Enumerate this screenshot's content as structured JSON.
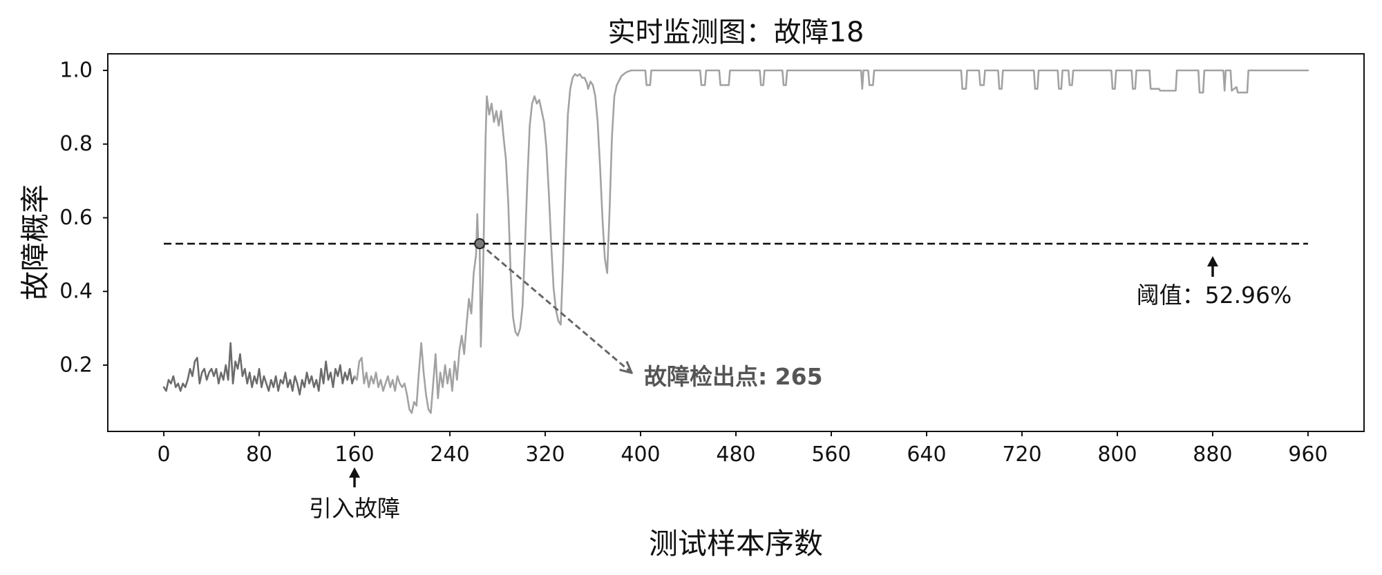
{
  "chart_data": {
    "type": "line",
    "title": "实时监测图：故障18",
    "xlabel": "测试样本序数",
    "ylabel": "故障概率",
    "xticks": [
      0,
      80,
      160,
      240,
      320,
      400,
      480,
      560,
      640,
      720,
      800,
      880,
      960
    ],
    "yticks": [
      0.2,
      0.4,
      0.6,
      0.8,
      1.0
    ],
    "ytick_labels": [
      "0.2",
      "0.4",
      "0.6",
      "0.8",
      "1.0"
    ],
    "xlim": [
      -47,
      1007
    ],
    "ylim": [
      0.02,
      1.045
    ],
    "grid": false,
    "legend": "none",
    "series": [
      {
        "color": "#6b6b6b",
        "points": [
          [
            0,
            0.14
          ],
          [
            2,
            0.13
          ],
          [
            4,
            0.16
          ],
          [
            6,
            0.15
          ],
          [
            8,
            0.17
          ],
          [
            10,
            0.14
          ],
          [
            12,
            0.15
          ],
          [
            14,
            0.13
          ],
          [
            16,
            0.15
          ],
          [
            18,
            0.14
          ],
          [
            20,
            0.16
          ],
          [
            22,
            0.19
          ],
          [
            24,
            0.17
          ],
          [
            26,
            0.21
          ],
          [
            28,
            0.22
          ],
          [
            30,
            0.15
          ],
          [
            32,
            0.18
          ],
          [
            34,
            0.19
          ],
          [
            36,
            0.16
          ],
          [
            38,
            0.18
          ],
          [
            40,
            0.19
          ],
          [
            42,
            0.17
          ],
          [
            44,
            0.19
          ],
          [
            46,
            0.15
          ],
          [
            48,
            0.18
          ],
          [
            50,
            0.16
          ],
          [
            52,
            0.2
          ],
          [
            54,
            0.16
          ],
          [
            56,
            0.26
          ],
          [
            58,
            0.15
          ],
          [
            60,
            0.21
          ],
          [
            62,
            0.19
          ],
          [
            64,
            0.23
          ],
          [
            66,
            0.17
          ],
          [
            68,
            0.19
          ],
          [
            70,
            0.15
          ],
          [
            72,
            0.18
          ],
          [
            74,
            0.14
          ],
          [
            76,
            0.17
          ],
          [
            78,
            0.15
          ],
          [
            80,
            0.19
          ],
          [
            82,
            0.14
          ],
          [
            84,
            0.17
          ],
          [
            86,
            0.15
          ],
          [
            88,
            0.13
          ],
          [
            90,
            0.16
          ],
          [
            92,
            0.14
          ],
          [
            94,
            0.17
          ],
          [
            96,
            0.13
          ],
          [
            98,
            0.16
          ],
          [
            100,
            0.15
          ],
          [
            102,
            0.18
          ],
          [
            104,
            0.14
          ],
          [
            106,
            0.16
          ],
          [
            108,
            0.13
          ],
          [
            110,
            0.17
          ],
          [
            112,
            0.15
          ],
          [
            114,
            0.12
          ],
          [
            116,
            0.16
          ],
          [
            118,
            0.14
          ],
          [
            120,
            0.18
          ],
          [
            122,
            0.15
          ],
          [
            124,
            0.17
          ],
          [
            126,
            0.14
          ],
          [
            128,
            0.16
          ],
          [
            130,
            0.13
          ],
          [
            132,
            0.19
          ],
          [
            134,
            0.15
          ],
          [
            136,
            0.21
          ],
          [
            138,
            0.16
          ],
          [
            140,
            0.18
          ],
          [
            142,
            0.14
          ],
          [
            144,
            0.19
          ],
          [
            146,
            0.17
          ],
          [
            148,
            0.2
          ],
          [
            150,
            0.15
          ],
          [
            152,
            0.18
          ],
          [
            154,
            0.16
          ],
          [
            156,
            0.19
          ],
          [
            158,
            0.15
          ],
          [
            160,
            0.17
          ]
        ]
      },
      {
        "color": "#a2a2a2",
        "points": [
          [
            160,
            0.17
          ],
          [
            162,
            0.16
          ],
          [
            164,
            0.21
          ],
          [
            166,
            0.22
          ],
          [
            168,
            0.15
          ],
          [
            170,
            0.18
          ],
          [
            172,
            0.14
          ],
          [
            174,
            0.17
          ],
          [
            176,
            0.15
          ],
          [
            178,
            0.18
          ],
          [
            180,
            0.14
          ],
          [
            182,
            0.16
          ],
          [
            184,
            0.13
          ],
          [
            186,
            0.15
          ],
          [
            188,
            0.17
          ],
          [
            190,
            0.14
          ],
          [
            192,
            0.16
          ],
          [
            194,
            0.13
          ],
          [
            196,
            0.17
          ],
          [
            198,
            0.15
          ],
          [
            200,
            0.14
          ],
          [
            202,
            0.15
          ],
          [
            204,
            0.12
          ],
          [
            206,
            0.08
          ],
          [
            208,
            0.07
          ],
          [
            210,
            0.1
          ],
          [
            212,
            0.09
          ],
          [
            214,
            0.18
          ],
          [
            216,
            0.26
          ],
          [
            218,
            0.18
          ],
          [
            220,
            0.12
          ],
          [
            222,
            0.08
          ],
          [
            224,
            0.07
          ],
          [
            226,
            0.15
          ],
          [
            228,
            0.23
          ],
          [
            230,
            0.11
          ],
          [
            232,
            0.18
          ],
          [
            234,
            0.14
          ],
          [
            236,
            0.2
          ],
          [
            238,
            0.15
          ],
          [
            240,
            0.19
          ],
          [
            242,
            0.13
          ],
          [
            244,
            0.21
          ],
          [
            246,
            0.16
          ],
          [
            248,
            0.24
          ],
          [
            250,
            0.28
          ],
          [
            252,
            0.23
          ],
          [
            254,
            0.31
          ],
          [
            256,
            0.38
          ],
          [
            258,
            0.34
          ],
          [
            260,
            0.45
          ],
          [
            262,
            0.5
          ],
          [
            263,
            0.61
          ],
          [
            264,
            0.52
          ],
          [
            265,
            0.53
          ],
          [
            266,
            0.25
          ],
          [
            268,
            0.48
          ],
          [
            270,
            0.82
          ],
          [
            271,
            0.93
          ],
          [
            273,
            0.88
          ],
          [
            275,
            0.91
          ],
          [
            277,
            0.86
          ],
          [
            279,
            0.89
          ],
          [
            281,
            0.85
          ],
          [
            283,
            0.89
          ],
          [
            285,
            0.82
          ],
          [
            287,
            0.76
          ],
          [
            289,
            0.64
          ],
          [
            291,
            0.45
          ],
          [
            293,
            0.33
          ],
          [
            295,
            0.29
          ],
          [
            297,
            0.28
          ],
          [
            299,
            0.3
          ],
          [
            301,
            0.36
          ],
          [
            303,
            0.52
          ],
          [
            305,
            0.7
          ],
          [
            307,
            0.85
          ],
          [
            309,
            0.91
          ],
          [
            311,
            0.93
          ],
          [
            313,
            0.91
          ],
          [
            315,
            0.92
          ],
          [
            317,
            0.89
          ],
          [
            319,
            0.86
          ],
          [
            321,
            0.79
          ],
          [
            323,
            0.67
          ],
          [
            325,
            0.53
          ],
          [
            327,
            0.41
          ],
          [
            329,
            0.35
          ],
          [
            331,
            0.32
          ],
          [
            333,
            0.31
          ],
          [
            335,
            0.48
          ],
          [
            337,
            0.7
          ],
          [
            339,
            0.88
          ],
          [
            341,
            0.95
          ],
          [
            343,
            0.98
          ],
          [
            345,
            0.99
          ],
          [
            347,
            0.985
          ],
          [
            349,
            0.99
          ],
          [
            351,
            0.98
          ],
          [
            353,
            0.98
          ],
          [
            355,
            0.965
          ],
          [
            356,
            0.95
          ],
          [
            358,
            0.97
          ],
          [
            360,
            0.96
          ],
          [
            362,
            0.93
          ],
          [
            364,
            0.86
          ],
          [
            366,
            0.74
          ],
          [
            368,
            0.6
          ],
          [
            370,
            0.49
          ],
          [
            372,
            0.45
          ],
          [
            374,
            0.62
          ],
          [
            376,
            0.82
          ],
          [
            378,
            0.93
          ],
          [
            380,
            0.96
          ],
          [
            384,
            0.985
          ],
          [
            388,
            0.995
          ],
          [
            392,
            1.0
          ],
          [
            404,
            1.0
          ],
          [
            405,
            0.96
          ],
          [
            408,
            0.96
          ],
          [
            409,
            1.0
          ],
          [
            450,
            1.0
          ],
          [
            451,
            0.96
          ],
          [
            454,
            0.96
          ],
          [
            455,
            1.0
          ],
          [
            466,
            1.0
          ],
          [
            467,
            0.96
          ],
          [
            474,
            0.96
          ],
          [
            475,
            1.0
          ],
          [
            500,
            1.0
          ],
          [
            501,
            0.96
          ],
          [
            503,
            0.96
          ],
          [
            504,
            1.0
          ],
          [
            519,
            1.0
          ],
          [
            520,
            0.96
          ],
          [
            522,
            0.96
          ],
          [
            523,
            1.0
          ],
          [
            585,
            1.0
          ],
          [
            586,
            0.95
          ],
          [
            587,
            1.0
          ],
          [
            591,
            1.0
          ],
          [
            592,
            0.96
          ],
          [
            595,
            0.96
          ],
          [
            596,
            1.0
          ],
          [
            669,
            1.0
          ],
          [
            670,
            0.95
          ],
          [
            673,
            0.95
          ],
          [
            674,
            1.0
          ],
          [
            684,
            1.0
          ],
          [
            685,
            0.96
          ],
          [
            688,
            0.96
          ],
          [
            689,
            1.0
          ],
          [
            700,
            1.0
          ],
          [
            701,
            0.95
          ],
          [
            703,
            0.95
          ],
          [
            704,
            1.0
          ],
          [
            730,
            1.0
          ],
          [
            731,
            0.95
          ],
          [
            733,
            0.95
          ],
          [
            734,
            1.0
          ],
          [
            750,
            1.0
          ],
          [
            751,
            0.95
          ],
          [
            753,
            0.95
          ],
          [
            754,
            1.0
          ],
          [
            759,
            1.0
          ],
          [
            760,
            0.96
          ],
          [
            762,
            0.96
          ],
          [
            763,
            1.0
          ],
          [
            795,
            1.0
          ],
          [
            796,
            0.95
          ],
          [
            798,
            0.95
          ],
          [
            799,
            1.0
          ],
          [
            812,
            1.0
          ],
          [
            813,
            0.95
          ],
          [
            815,
            0.95
          ],
          [
            816,
            1.0
          ],
          [
            827,
            1.0
          ],
          [
            828,
            0.95
          ],
          [
            835,
            0.95
          ],
          [
            836,
            0.945
          ],
          [
            849,
            0.945
          ],
          [
            850,
            1.0
          ],
          [
            868,
            1.0
          ],
          [
            869,
            0.94
          ],
          [
            872,
            0.94
          ],
          [
            873,
            1.0
          ],
          [
            889,
            1.0
          ],
          [
            890,
            0.945
          ],
          [
            891,
            1.0
          ],
          [
            895,
            1.0
          ],
          [
            896,
            0.945
          ],
          [
            900,
            0.955
          ],
          [
            901,
            0.94
          ],
          [
            909,
            0.94
          ],
          [
            910,
            1.0
          ],
          [
            960,
            1.0
          ]
        ]
      }
    ],
    "threshold": {
      "value": 0.5296,
      "label": "阈值：52.96%",
      "color": "#111111",
      "style": "dashed"
    },
    "fault_introduced": {
      "x": 160,
      "label": "引入故障"
    },
    "detection": {
      "x": 265,
      "y": 0.5296,
      "label": "故障检出点: 265",
      "color": "#555555",
      "marker_color": "#7a7a7a"
    }
  }
}
